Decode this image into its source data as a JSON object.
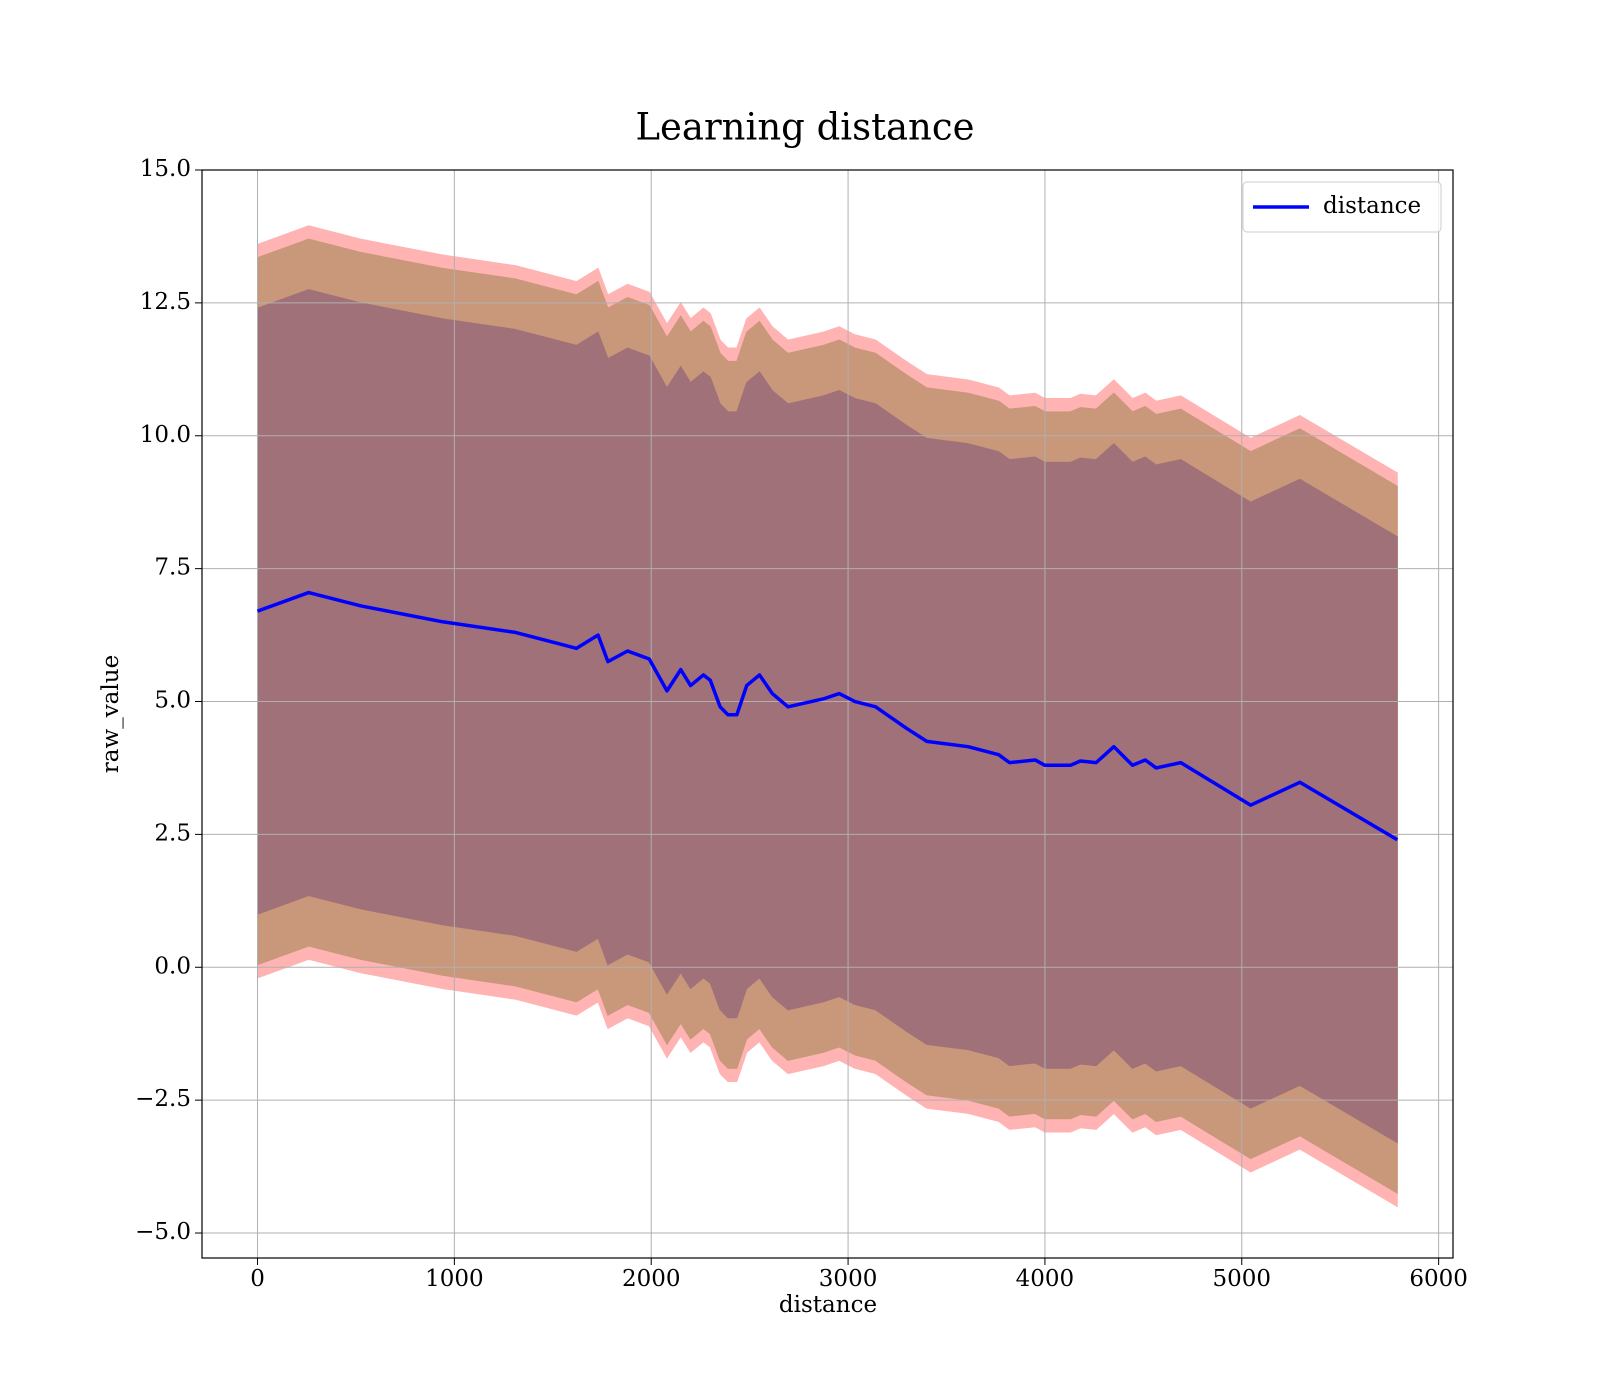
{
  "chart_data": {
    "type": "line",
    "title": "Learning distance",
    "xlabel": "distance",
    "ylabel": "raw_value",
    "x": [
      0,
      260,
      523,
      940,
      1310,
      1620,
      1730,
      1780,
      1880,
      1990,
      2080,
      2150,
      2200,
      2265,
      2300,
      2350,
      2390,
      2435,
      2485,
      2550,
      2615,
      2695,
      2875,
      2955,
      3035,
      3140,
      3295,
      3400,
      3610,
      3765,
      3820,
      3950,
      4000,
      4130,
      4180,
      4260,
      4350,
      4445,
      4510,
      4565,
      4690,
      5045,
      5295,
      5790
    ],
    "series": [
      {
        "name": "distance",
        "color": "#0000ff",
        "values": [
          6.7,
          7.05,
          6.8,
          6.5,
          6.3,
          6.0,
          6.25,
          5.75,
          5.95,
          5.8,
          5.2,
          5.6,
          5.3,
          5.5,
          5.4,
          4.9,
          4.75,
          4.75,
          5.3,
          5.5,
          5.15,
          4.9,
          5.05,
          5.15,
          5.0,
          4.9,
          4.5,
          4.25,
          4.15,
          4.0,
          3.85,
          3.9,
          3.8,
          3.8,
          3.88,
          3.85,
          4.15,
          3.8,
          3.9,
          3.75,
          3.85,
          3.05,
          3.48,
          2.4
        ]
      }
    ],
    "bands": [
      {
        "color": "#ffb3b3",
        "upper": [
          13.6,
          13.95,
          13.7,
          13.4,
          13.2,
          12.9,
          13.15,
          12.65,
          12.85,
          12.7,
          12.1,
          12.5,
          12.2,
          12.4,
          12.3,
          11.8,
          11.65,
          11.65,
          12.2,
          12.4,
          12.05,
          11.8,
          11.95,
          12.05,
          11.9,
          11.8,
          11.4,
          11.15,
          11.05,
          10.9,
          10.75,
          10.8,
          10.7,
          10.7,
          10.78,
          10.75,
          11.05,
          10.7,
          10.8,
          10.65,
          10.75,
          9.95,
          10.38,
          9.3
        ],
        "lower": [
          -0.2,
          0.15,
          -0.1,
          -0.4,
          -0.6,
          -0.9,
          -0.65,
          -1.15,
          -0.95,
          -1.1,
          -1.7,
          -1.3,
          -1.6,
          -1.4,
          -1.5,
          -2.0,
          -2.15,
          -2.15,
          -1.6,
          -1.4,
          -1.75,
          -2.0,
          -1.85,
          -1.75,
          -1.9,
          -2.0,
          -2.4,
          -2.65,
          -2.75,
          -2.9,
          -3.05,
          -3.0,
          -3.1,
          -3.1,
          -3.02,
          -3.05,
          -2.75,
          -3.1,
          -3.0,
          -3.15,
          -3.05,
          -3.85,
          -3.42,
          -4.5
        ]
      },
      {
        "color": "#c9977a",
        "upper": [
          13.35,
          13.7,
          13.45,
          13.15,
          12.95,
          12.65,
          12.9,
          12.4,
          12.6,
          12.45,
          11.85,
          12.25,
          11.95,
          12.15,
          12.05,
          11.55,
          11.4,
          11.4,
          11.95,
          12.15,
          11.8,
          11.55,
          11.7,
          11.8,
          11.65,
          11.55,
          11.15,
          10.9,
          10.8,
          10.65,
          10.5,
          10.55,
          10.45,
          10.45,
          10.53,
          10.5,
          10.8,
          10.45,
          10.55,
          10.4,
          10.5,
          9.7,
          10.13,
          9.05
        ],
        "lower": [
          0.05,
          0.4,
          0.15,
          -0.15,
          -0.35,
          -0.65,
          -0.4,
          -0.9,
          -0.7,
          -0.85,
          -1.45,
          -1.05,
          -1.35,
          -1.15,
          -1.25,
          -1.75,
          -1.9,
          -1.9,
          -1.35,
          -1.15,
          -1.5,
          -1.75,
          -1.6,
          -1.5,
          -1.65,
          -1.75,
          -2.15,
          -2.4,
          -2.5,
          -2.65,
          -2.8,
          -2.75,
          -2.85,
          -2.85,
          -2.77,
          -2.8,
          -2.5,
          -2.85,
          -2.75,
          -2.9,
          -2.8,
          -3.6,
          -3.17,
          -4.25
        ]
      },
      {
        "color": "#a07178",
        "upper": [
          12.4,
          12.75,
          12.5,
          12.2,
          12.0,
          11.7,
          11.95,
          11.45,
          11.65,
          11.5,
          10.9,
          11.3,
          11.0,
          11.2,
          11.1,
          10.6,
          10.45,
          10.45,
          11.0,
          11.2,
          10.85,
          10.6,
          10.75,
          10.85,
          10.7,
          10.6,
          10.2,
          9.95,
          9.85,
          9.7,
          9.55,
          9.6,
          9.5,
          9.5,
          9.58,
          9.55,
          9.85,
          9.5,
          9.6,
          9.45,
          9.55,
          8.75,
          9.18,
          8.1
        ],
        "lower": [
          1.0,
          1.35,
          1.1,
          0.8,
          0.6,
          0.3,
          0.55,
          0.05,
          0.25,
          0.1,
          -0.5,
          -0.1,
          -0.4,
          -0.2,
          -0.3,
          -0.8,
          -0.95,
          -0.95,
          -0.4,
          -0.2,
          -0.55,
          -0.8,
          -0.65,
          -0.55,
          -0.7,
          -0.8,
          -1.2,
          -1.45,
          -1.55,
          -1.7,
          -1.85,
          -1.8,
          -1.9,
          -1.9,
          -1.82,
          -1.85,
          -1.55,
          -1.9,
          -1.8,
          -1.95,
          -1.85,
          -2.65,
          -2.22,
          -3.3
        ]
      }
    ],
    "xlim": [
      -282,
      6073
    ],
    "xticks": [
      0,
      1000,
      2000,
      3000,
      4000,
      5000,
      6000
    ],
    "ylim": [
      -5.47,
      15
    ],
    "yticks": [
      {
        "value": -5,
        "label": "−5.0"
      },
      {
        "value": -2.5,
        "label": "−2.5"
      },
      {
        "value": 0,
        "label": "0.0"
      },
      2.5,
      {
        "value": 5,
        "label": "5.0"
      },
      7.5,
      {
        "value": 10,
        "label": "10.0"
      },
      12.5,
      {
        "value": 15,
        "label": "15.0"
      }
    ],
    "grid": true,
    "legend": "upper right"
  }
}
